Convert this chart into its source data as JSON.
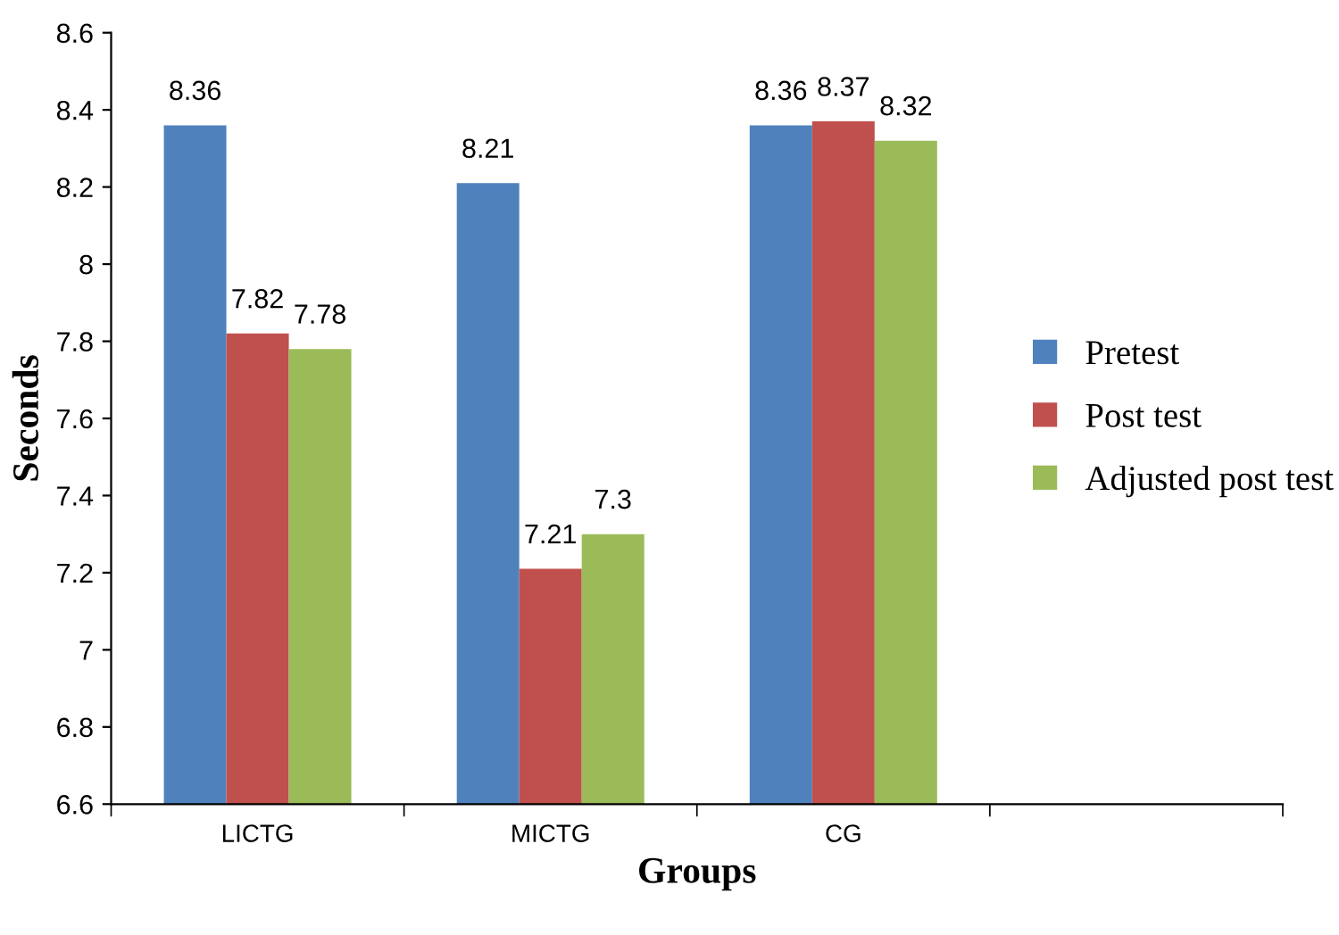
{
  "chart_data": {
    "type": "bar",
    "xlabel": "Groups",
    "ylabel": "Seconds",
    "categories": [
      "LICTG",
      "MICTG",
      "CG",
      null
    ],
    "series": [
      {
        "name": "Pretest",
        "color": "#4f81bd",
        "values": [
          8.36,
          8.21,
          8.36,
          null
        ]
      },
      {
        "name": "Post test",
        "color": "#c0504d",
        "values": [
          7.82,
          7.21,
          8.37,
          null
        ]
      },
      {
        "name": "Adjusted post test",
        "color": "#9bbb59",
        "values": [
          7.78,
          7.3,
          8.32,
          null
        ]
      }
    ],
    "ylim": [
      6.6,
      8.6
    ],
    "yticks": [
      6.6,
      6.8,
      7,
      7.2,
      7.4,
      7.6,
      7.8,
      8,
      8.2,
      8.4,
      8.6
    ],
    "data_labels": true,
    "legend": "right",
    "grid": false
  }
}
